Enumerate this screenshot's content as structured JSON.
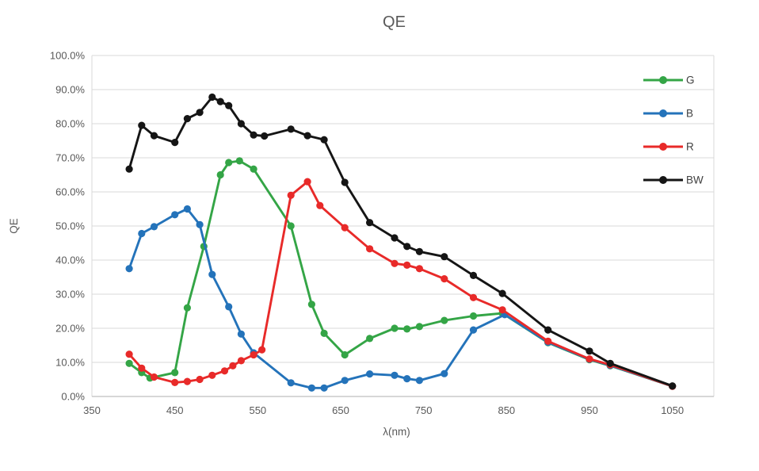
{
  "chart_title": "QE",
  "colors": {
    "green_series": "#34A546",
    "blue_series": "#2473BA",
    "red_series": "#E82A29",
    "bw_series": "#151515",
    "gridline": "#D9D9D9",
    "axis_line": "#BFBFBF",
    "tick_text": "#595959",
    "title_text": "#595959",
    "legend_text": "#404040",
    "background": "#FFFFFF"
  },
  "chart_data": {
    "type": "line",
    "title": "QE",
    "xlabel": "λ(nm)",
    "ylabel": "QE",
    "xlim": [
      350,
      1100
    ],
    "ylim": [
      0,
      100
    ],
    "grid": "horizontal",
    "legend_position": "inside-top-right",
    "x_ticks": [
      350,
      450,
      550,
      650,
      750,
      850,
      950,
      1050
    ],
    "x_tick_labels": [
      "350",
      "450",
      "550",
      "650",
      "750",
      "850",
      "950",
      "1050"
    ],
    "y_ticks": [
      0,
      10,
      20,
      30,
      40,
      50,
      60,
      70,
      80,
      90,
      100
    ],
    "y_tick_labels": [
      "0.0%",
      "10.0%",
      "20.0%",
      "30.0%",
      "40.0%",
      "50.0%",
      "60.0%",
      "70.0%",
      "80.0%",
      "90.0%",
      "100.0%"
    ],
    "series": [
      {
        "name": "G",
        "color_key": "green_series",
        "points": [
          [
            395,
            9.7
          ],
          [
            410,
            7.0
          ],
          [
            420,
            5.4
          ],
          [
            450,
            7.0
          ],
          [
            465,
            26.0
          ],
          [
            485,
            44.0
          ],
          [
            505,
            65.0
          ],
          [
            515,
            68.6
          ],
          [
            528,
            69.1
          ],
          [
            545,
            66.7
          ],
          [
            590,
            50.0
          ],
          [
            615,
            27.0
          ],
          [
            630,
            18.5
          ],
          [
            655,
            12.2
          ],
          [
            685,
            17.0
          ],
          [
            715,
            20.0
          ],
          [
            730,
            19.8
          ],
          [
            745,
            20.5
          ],
          [
            775,
            22.3
          ],
          [
            810,
            23.6
          ],
          [
            845,
            24.4
          ],
          [
            900,
            15.8
          ],
          [
            950,
            10.8
          ],
          [
            975,
            9.0
          ],
          [
            1050,
            3.0
          ]
        ]
      },
      {
        "name": "B",
        "color_key": "blue_series",
        "points": [
          [
            395,
            37.5
          ],
          [
            410,
            47.8
          ],
          [
            425,
            49.8
          ],
          [
            450,
            53.3
          ],
          [
            465,
            55.0
          ],
          [
            480,
            50.4
          ],
          [
            495,
            35.8
          ],
          [
            515,
            26.3
          ],
          [
            530,
            18.3
          ],
          [
            545,
            12.8
          ],
          [
            590,
            4.0
          ],
          [
            615,
            2.5
          ],
          [
            630,
            2.5
          ],
          [
            655,
            4.7
          ],
          [
            685,
            6.6
          ],
          [
            715,
            6.2
          ],
          [
            730,
            5.2
          ],
          [
            745,
            4.7
          ],
          [
            775,
            6.7
          ],
          [
            810,
            19.5
          ],
          [
            848,
            24.0
          ],
          [
            900,
            15.9
          ],
          [
            950,
            10.9
          ],
          [
            975,
            9.1
          ],
          [
            1050,
            3.0
          ]
        ]
      },
      {
        "name": "R",
        "color_key": "red_series",
        "points": [
          [
            395,
            12.4
          ],
          [
            410,
            8.3
          ],
          [
            425,
            5.7
          ],
          [
            450,
            4.1
          ],
          [
            465,
            4.4
          ],
          [
            480,
            5.0
          ],
          [
            495,
            6.2
          ],
          [
            510,
            7.5
          ],
          [
            520,
            9.0
          ],
          [
            530,
            10.5
          ],
          [
            545,
            12.2
          ],
          [
            555,
            13.7
          ],
          [
            590,
            59.0
          ],
          [
            610,
            63.0
          ],
          [
            625,
            56.0
          ],
          [
            655,
            49.5
          ],
          [
            685,
            43.3
          ],
          [
            715,
            39.0
          ],
          [
            730,
            38.5
          ],
          [
            745,
            37.5
          ],
          [
            775,
            34.5
          ],
          [
            810,
            29.0
          ],
          [
            845,
            25.4
          ],
          [
            900,
            16.2
          ],
          [
            950,
            11.0
          ],
          [
            975,
            9.3
          ],
          [
            1050,
            3.0
          ]
        ]
      },
      {
        "name": "BW",
        "color_key": "bw_series",
        "points": [
          [
            395,
            66.7
          ],
          [
            410,
            79.5
          ],
          [
            425,
            76.5
          ],
          [
            450,
            74.5
          ],
          [
            465,
            81.5
          ],
          [
            480,
            83.3
          ],
          [
            495,
            87.8
          ],
          [
            505,
            86.5
          ],
          [
            515,
            85.3
          ],
          [
            530,
            80.0
          ],
          [
            545,
            76.7
          ],
          [
            558,
            76.4
          ],
          [
            590,
            78.4
          ],
          [
            610,
            76.5
          ],
          [
            630,
            75.3
          ],
          [
            655,
            62.8
          ],
          [
            685,
            51.0
          ],
          [
            715,
            46.5
          ],
          [
            730,
            44.0
          ],
          [
            745,
            42.5
          ],
          [
            775,
            41.0
          ],
          [
            810,
            35.5
          ],
          [
            845,
            30.2
          ],
          [
            900,
            19.5
          ],
          [
            950,
            13.3
          ],
          [
            975,
            9.7
          ],
          [
            1050,
            3.1
          ]
        ]
      }
    ]
  }
}
